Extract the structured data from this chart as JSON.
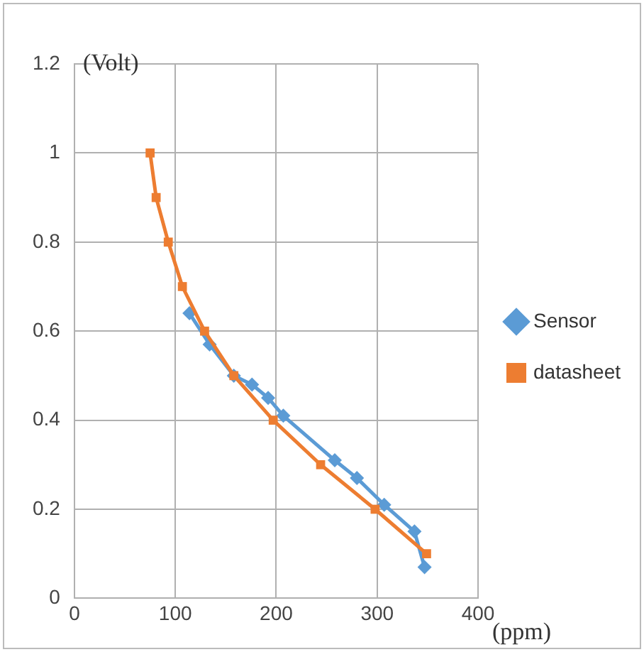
{
  "chart_data": {
    "type": "line",
    "xlabel": "(ppm)",
    "ylabel": "(Volt)",
    "xlim": [
      0,
      400
    ],
    "xticks": [
      0,
      100,
      200,
      300,
      400
    ],
    "ylim": [
      0,
      1.2
    ],
    "yticks": [
      0,
      0.2,
      0.4,
      0.6,
      0.8,
      1,
      1.2
    ],
    "grid": true,
    "legend": "right",
    "series": [
      {
        "name": "Sensor",
        "color": "#5b9bd5",
        "marker": "diamond",
        "x": [
          114,
          134,
          158,
          176,
          192,
          207,
          258,
          280,
          307,
          337,
          347
        ],
        "values": [
          0.64,
          0.57,
          0.5,
          0.48,
          0.45,
          0.41,
          0.31,
          0.27,
          0.21,
          0.15,
          0.07
        ]
      },
      {
        "name": "datasheet",
        "color": "#ed7d31",
        "marker": "square",
        "x": [
          75,
          81,
          93,
          107,
          129,
          158,
          197,
          244,
          298,
          349
        ],
        "values": [
          1,
          0.9,
          0.8,
          0.7,
          0.6,
          0.5,
          0.4,
          0.3,
          0.2,
          0.1
        ]
      }
    ]
  }
}
